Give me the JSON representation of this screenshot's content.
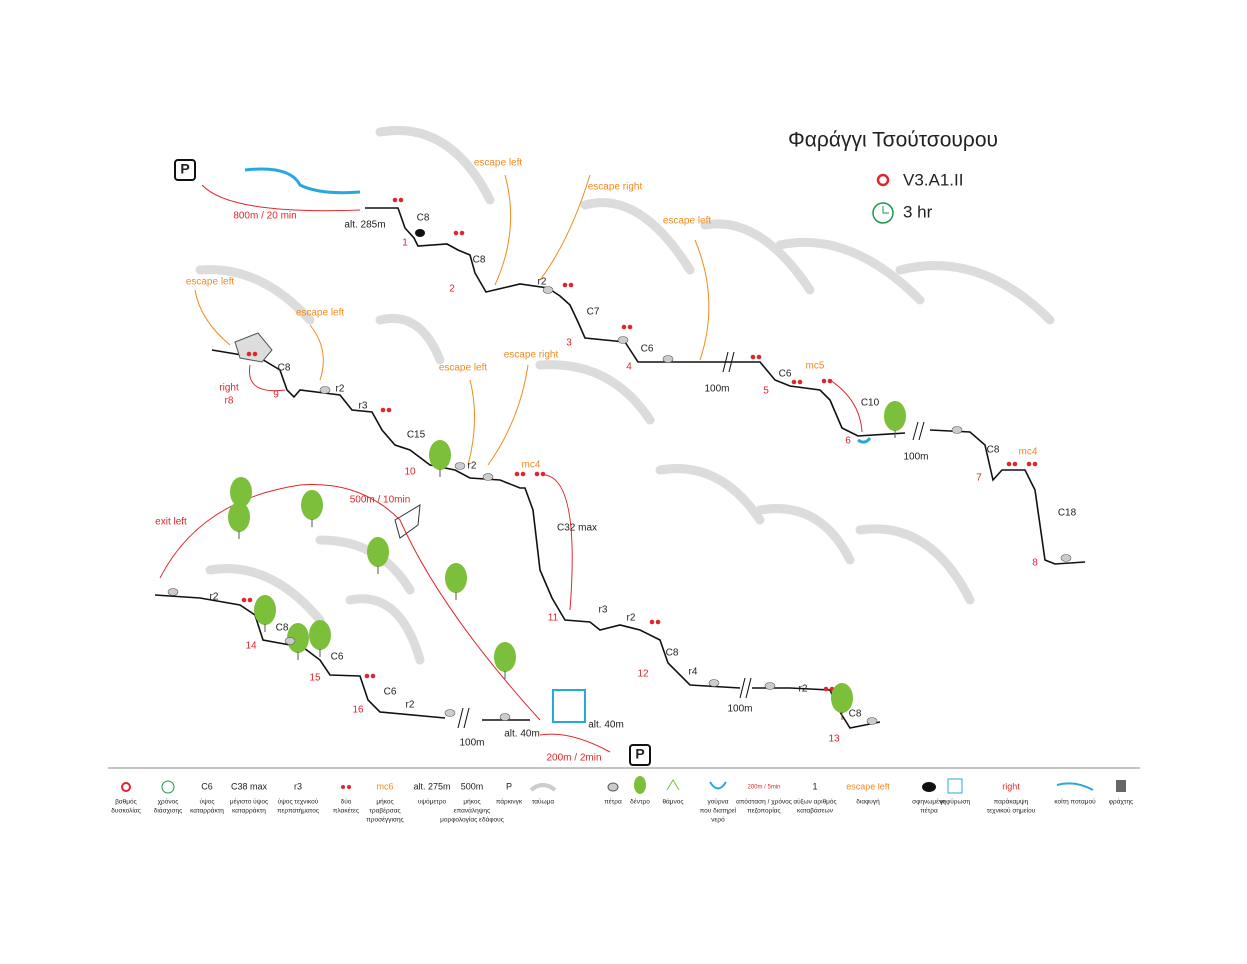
{
  "header": {
    "title": "Φαράγγι Τσούτσουρου",
    "rating": "V3.A1.II",
    "time": "3 hr"
  },
  "labels": [
    "P",
    "800m / 20 min",
    "alt. 285m",
    "C8",
    "1",
    "escape left",
    "escape right",
    "C8",
    "r2",
    "2",
    "C7",
    "3",
    "C6",
    "4",
    "escape left",
    "100m",
    "C6",
    "mc5",
    "5",
    "C10",
    "6",
    "100m",
    "C8",
    "mc4",
    "7",
    "C18",
    "8",
    "escape left",
    "escape left",
    "right",
    "r8",
    "C8",
    "9",
    "r2",
    "r3",
    "C15",
    "10",
    "escape left",
    "escape right",
    "r2",
    "mc4",
    "C32 max",
    "11",
    "r3",
    "r2",
    "C8",
    "12",
    "r4",
    "100m",
    "r2",
    "C8",
    "13",
    "500m / 10min",
    "exit left",
    "r2",
    "C8",
    "14",
    "C6",
    "15",
    "C6",
    "16",
    "r2",
    "100m",
    "alt. 40m",
    "alt. 40m",
    "200m / 2min",
    "P"
  ],
  "legend": [
    {
      "lines": [
        "βαθμός",
        "δυσκολίας"
      ]
    },
    {
      "lines": [
        "χρόνος",
        "διάσχισης"
      ]
    },
    {
      "symbol": "C6",
      "lines": [
        "ύψος",
        "καταρράκτη"
      ]
    },
    {
      "symbol": "C38 max",
      "lines": [
        "μέγιστο ύψος",
        "καταρράκτη"
      ]
    },
    {
      "symbol": "r3",
      "lines": [
        "ύψος τεχνικού",
        "περπατήματος"
      ]
    },
    {
      "lines": [
        "δύο",
        "πλακέτες"
      ]
    },
    {
      "symbol": "mc6",
      "lines": [
        "μήκος",
        "τραβέρσας",
        "προσέγγισης"
      ]
    },
    {
      "symbol": "alt. 275m",
      "lines": [
        "υψόμετρο"
      ]
    },
    {
      "symbol": "500m",
      "lines": [
        "μήκος",
        "επανάληψης",
        "μορφολογίας εδάφους"
      ]
    },
    {
      "symbol": "P",
      "lines": [
        "πάρκινγκ"
      ]
    },
    {
      "lines": [
        "ταύωμα"
      ]
    },
    {
      "lines": [
        "πέτρα"
      ]
    },
    {
      "lines": [
        "δέντρο"
      ]
    },
    {
      "lines": [
        "θάμνος"
      ]
    },
    {
      "lines": [
        "γούρνα",
        "που διατηρεί",
        "νερό"
      ]
    },
    {
      "symbol": "200m / 5min",
      "lines": [
        "απόσταση / χρόνος",
        "πεζοπορίας"
      ]
    },
    {
      "symbol": "1",
      "lines": [
        "αύξων αριθμός",
        "καταβάσεων"
      ]
    },
    {
      "symbol": "escape left",
      "lines": [
        "διαφυγή"
      ]
    },
    {
      "lines": [
        "σφηνωμένη",
        "πέτρα"
      ]
    },
    {
      "lines": [
        "γεφύρωση"
      ]
    },
    {
      "symbol": "right",
      "lines": [
        "παράκαμψη",
        "τεχνικού σημείου"
      ]
    },
    {
      "lines": [
        "κοίτη ποταμού"
      ]
    },
    {
      "lines": [
        "φράχτης"
      ]
    }
  ]
}
